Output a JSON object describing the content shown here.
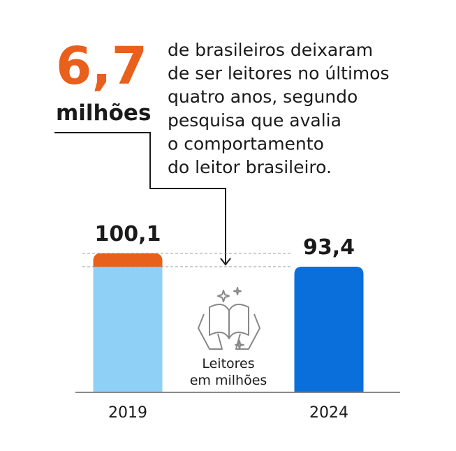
{
  "chart_data": {
    "type": "bar",
    "highlight": {
      "value": 6.7,
      "label": "6,7",
      "unit": "milhões",
      "color": "#e8601c"
    },
    "text_lines": [
      "de brasileiros deixaram",
      "de ser leitores no últimos",
      "quatro anos, segundo",
      "pesquisa que avalia",
      "o comportamento",
      "do leitor brasileiro."
    ],
    "label_lines": [
      "Leitores",
      "em milhões"
    ],
    "categories": [
      "2019",
      "2024"
    ],
    "values": [
      100.1,
      93.4
    ],
    "value_labels": [
      "100,1",
      "93,4"
    ],
    "colors": [
      "#8fd0f7",
      "#0a6fdb"
    ],
    "ylim": [
      30,
      105
    ]
  }
}
